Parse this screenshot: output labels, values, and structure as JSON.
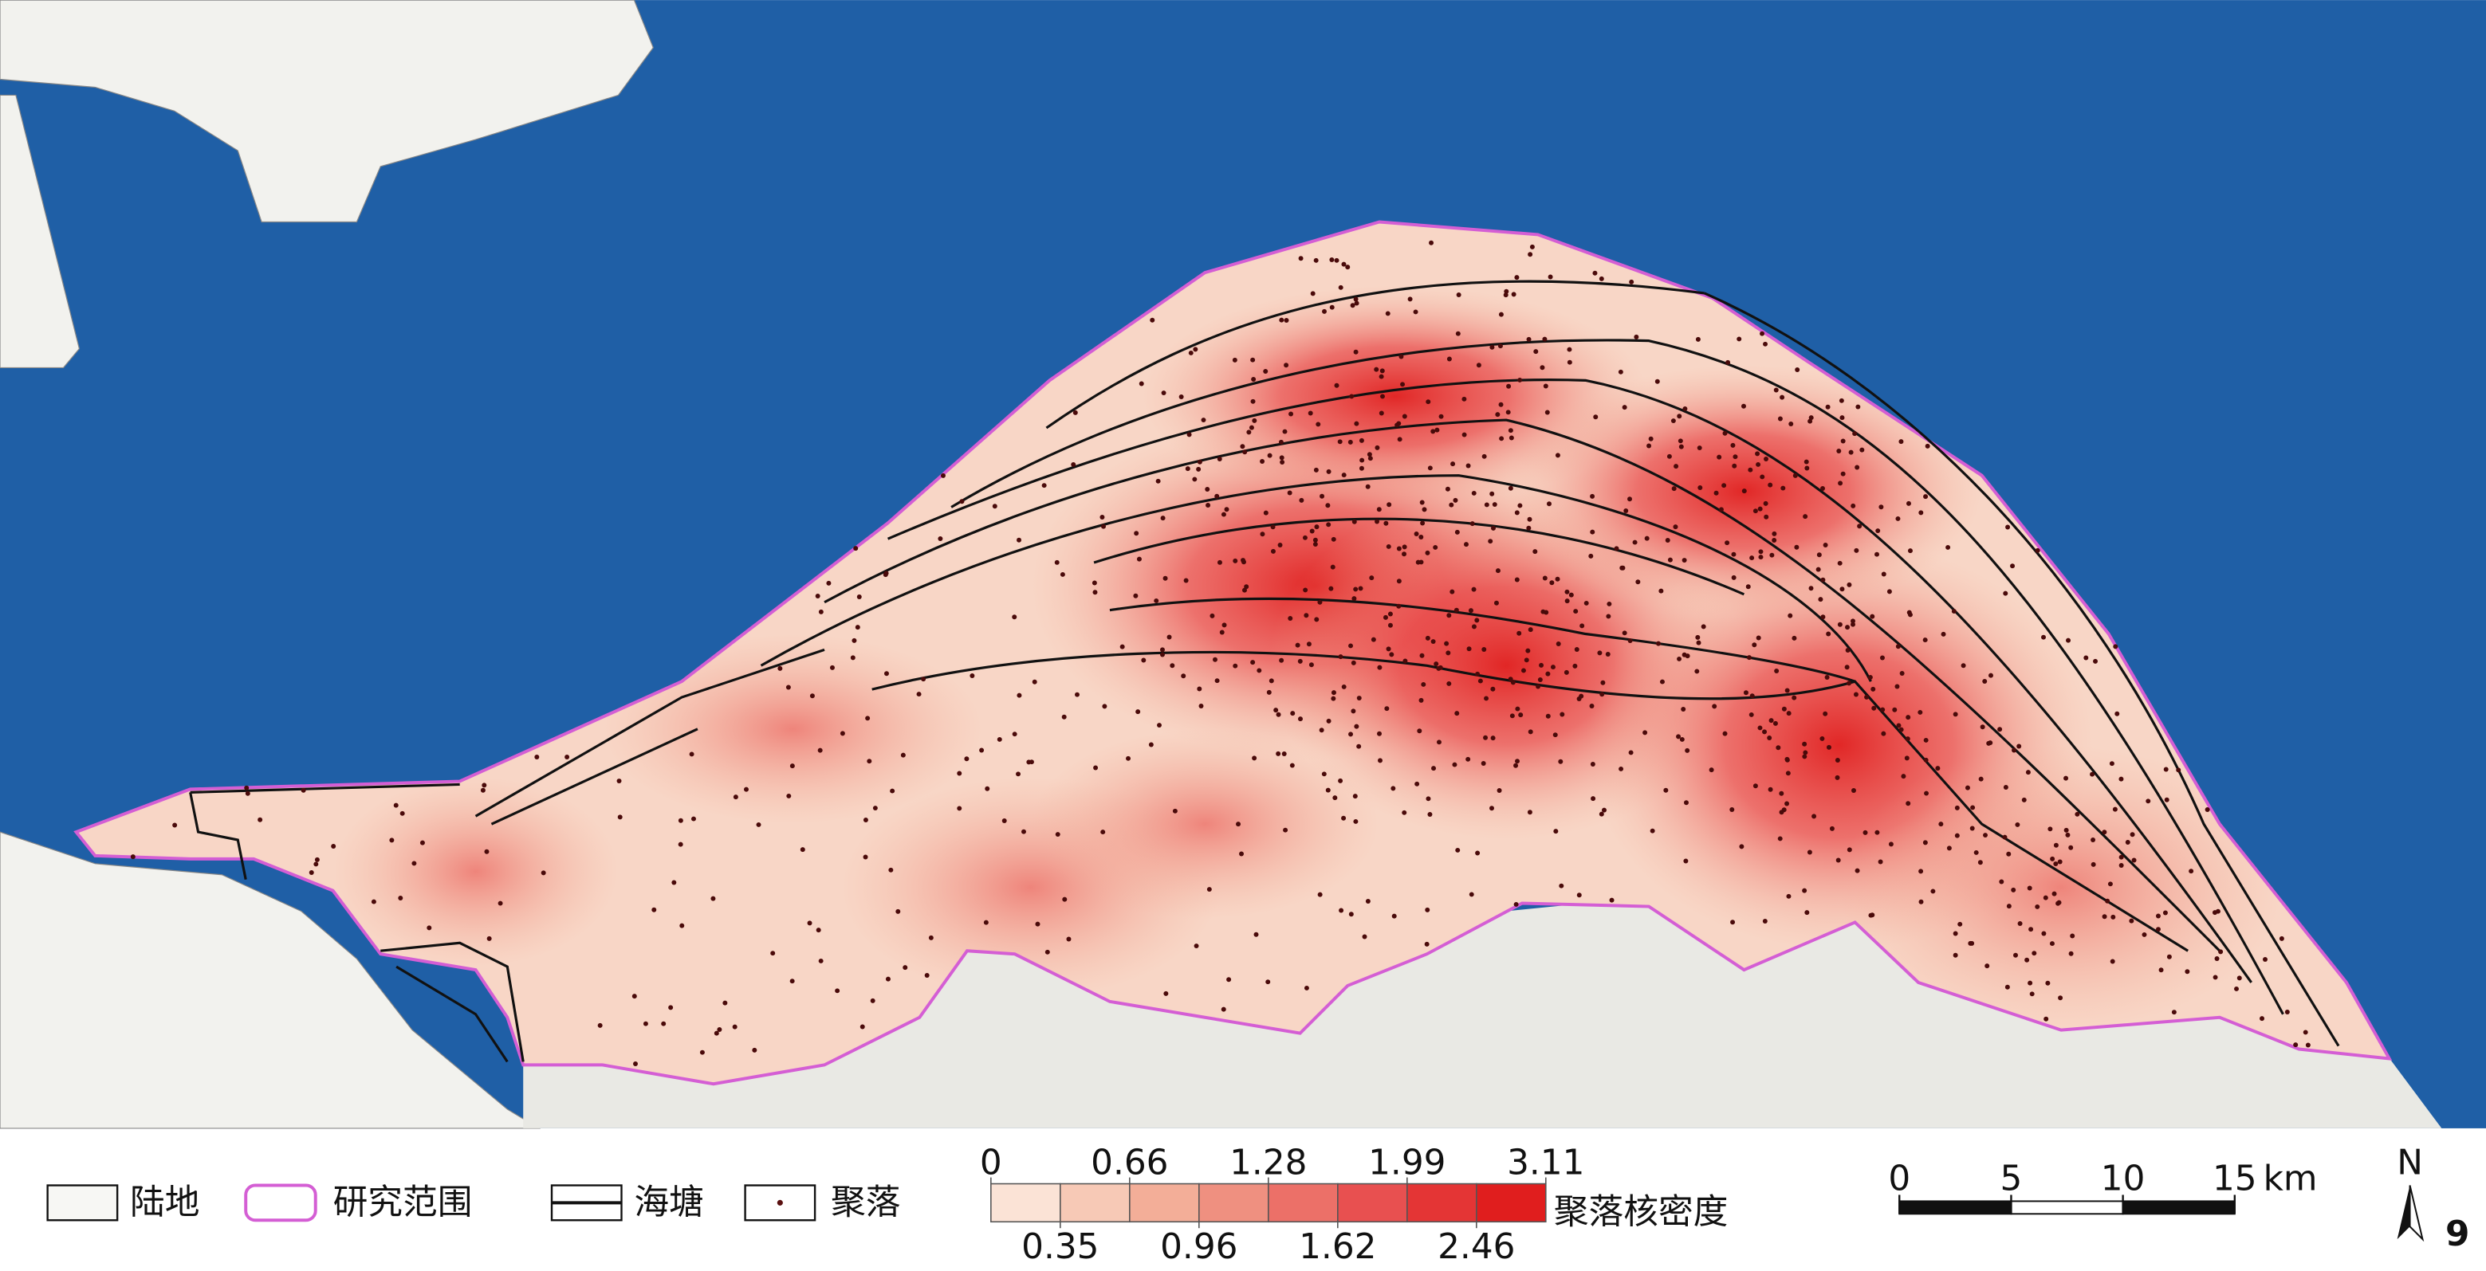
{
  "legend": {
    "items": [
      "陆地",
      "研究范围",
      "海塘",
      "聚落"
    ]
  },
  "density": {
    "title": "聚落核密度",
    "breaks": [
      0,
      0.35,
      0.66,
      0.96,
      1.28,
      1.62,
      1.99,
      2.46,
      3.11
    ],
    "colors": [
      "#fbe3d6",
      "#f7c9b6",
      "#f3ae98",
      "#ef9080",
      "#ec7068",
      "#e85050",
      "#e43535",
      "#e01e1e"
    ]
  },
  "scalebar": {
    "ticks": [
      0,
      5,
      10,
      15
    ],
    "unit": "km"
  },
  "north": "N",
  "figure_number": "9"
}
